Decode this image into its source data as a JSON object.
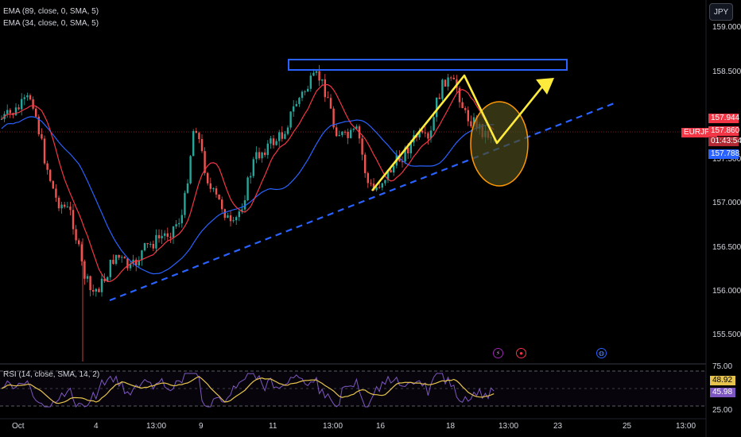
{
  "indicators": {
    "ema89": "EMA (89, close, 0, SMA, 5)",
    "ema34": "EMA (34, close, 0, SMA, 5)",
    "rsi": "RSI (14, close, SMA, 14, 2)"
  },
  "currency_button": "JPY",
  "symbol": "EURJPY",
  "price_axis": [
    "159.000",
    "158.500",
    "157.500",
    "157.000",
    "156.500",
    "156.000",
    "155.500"
  ],
  "price_tags": {
    "high_price": "157.944",
    "current_price": "157.860",
    "countdown": "01:43:54",
    "ema_value": "157.788"
  },
  "rsi_axis": [
    "75.00",
    "25.00"
  ],
  "rsi_tags": {
    "rsi_value": "48.92",
    "rsi_ma": "45.98"
  },
  "time_axis": [
    "Oct",
    "4",
    "13:00",
    "9",
    "11",
    "13:00",
    "16",
    "18",
    "13:00",
    "23",
    "25",
    "13:00"
  ],
  "colors": {
    "up_candle": "#26a69a",
    "down_candle": "#ef5350",
    "ema_fast": "#f23645",
    "ema_slow": "#2962ff",
    "annotation": "#ffeb3b",
    "resistance_box": "#2962ff",
    "trendline": "#2962ff"
  },
  "event_icons": [
    "lightning-icon",
    "target-icon",
    "globe-icon"
  ]
}
